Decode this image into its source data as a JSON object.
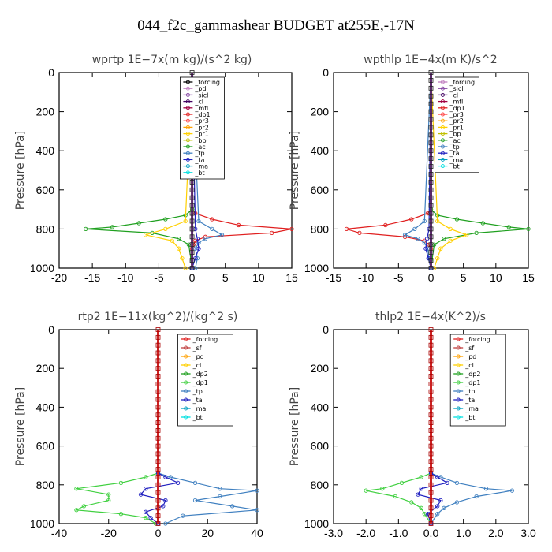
{
  "figure_title": "044_f2c_gammashear  BUDGET at255E,-17N",
  "chart_data": [
    {
      "type": "line",
      "title": "wprtp   1E−7x(m kg)/(s^2 kg)",
      "ylabel": "Pressure [hPa]",
      "xlim": [
        -20,
        15
      ],
      "ylim": [
        1000,
        0
      ],
      "xticks": [
        "-20",
        "-15",
        "-10",
        "-5",
        "0",
        "5",
        "10",
        "15"
      ],
      "xtick_values": [
        -20,
        -15,
        -10,
        -5,
        0,
        5,
        10,
        15
      ],
      "yticks": [
        "0",
        "200",
        "400",
        "600",
        "800",
        "1000"
      ],
      "ytick_values": [
        0,
        200,
        400,
        600,
        800,
        1000
      ],
      "legend": [
        "_forcing",
        "_pd",
        "_sicl",
        "_cl",
        "_mfl",
        "_dp1",
        "_pr3",
        "_pr2",
        "_pr1",
        "_bp",
        "_ac",
        "_tp",
        "_ta",
        "_ma",
        "_bt"
      ],
      "legend_colors": [
        "#000000",
        "#c080c0",
        "#8040a0",
        "#400060",
        "#a00040",
        "#e02020",
        "#ff4040",
        "#ffa000",
        "#ffd000",
        "#c0c000",
        "#20a020",
        "#4080c0",
        "#2020c0",
        "#00a0c0",
        "#00e0e0"
      ],
      "series": [
        {
          "name": "_dp1",
          "color": "#e02020",
          "y": [
            0,
            700,
            720,
            750,
            780,
            800,
            820,
            840,
            860,
            880,
            900,
            1000
          ],
          "x": [
            0,
            0,
            0.5,
            3,
            7,
            15,
            12,
            2,
            0.5,
            0.2,
            0,
            0
          ]
        },
        {
          "name": "_ac",
          "color": "#20a020",
          "y": [
            0,
            700,
            730,
            750,
            770,
            790,
            800,
            820,
            850,
            880,
            1000
          ],
          "x": [
            0,
            0,
            -1,
            -4,
            -8,
            -12,
            -16,
            -6,
            -2,
            -0.5,
            0
          ]
        },
        {
          "name": "_pr1",
          "color": "#ffd000",
          "y": [
            0,
            760,
            800,
            830,
            860,
            900,
            950,
            1000
          ],
          "x": [
            0,
            -1,
            -4,
            -7,
            -3,
            -2,
            -1.5,
            -1
          ]
        },
        {
          "name": "_tp",
          "color": "#4080c0",
          "y": [
            0,
            760,
            800,
            830,
            850,
            870,
            900,
            950,
            1000
          ],
          "x": [
            0,
            1,
            3,
            4.5,
            2,
            1,
            0.5,
            0.8,
            0.5
          ]
        },
        {
          "name": "_ta",
          "color": "#2020c0",
          "y": [
            0,
            800,
            850,
            900,
            950,
            1000
          ],
          "x": [
            0,
            0.5,
            0.8,
            1,
            0.5,
            0
          ]
        }
      ]
    },
    {
      "type": "line",
      "title": "wpthlp   1E−4x(m K)/s^2",
      "ylabel": "Pressure [hPa]",
      "xlim": [
        -15,
        15
      ],
      "ylim": [
        1000,
        0
      ],
      "xticks": [
        "-15",
        "-10",
        "-5",
        "0",
        "5",
        "10",
        "15"
      ],
      "xtick_values": [
        -15,
        -10,
        -5,
        0,
        5,
        10,
        15
      ],
      "yticks": [
        "0",
        "200",
        "400",
        "600",
        "800",
        "1000"
      ],
      "ytick_values": [
        0,
        200,
        400,
        600,
        800,
        1000
      ],
      "legend": [
        "_forcing",
        "_sicl",
        "_cl",
        "_mfl",
        "_dp1",
        "_pr3",
        "_pr2",
        "_pr1",
        "_bp",
        "_ac",
        "_tp",
        "_ta",
        "_ma",
        "_bt"
      ],
      "legend_colors": [
        "#c080c0",
        "#8040a0",
        "#400060",
        "#a00040",
        "#e02020",
        "#ff4040",
        "#ffa000",
        "#ffd000",
        "#c0c000",
        "#20a020",
        "#4080c0",
        "#2020c0",
        "#00a0c0",
        "#00e0e0"
      ],
      "series": [
        {
          "name": "_dp1",
          "color": "#e02020",
          "y": [
            0,
            700,
            720,
            750,
            780,
            800,
            820,
            840,
            860,
            880,
            900,
            1000
          ],
          "x": [
            0,
            0,
            -0.5,
            -3,
            -7,
            -13,
            -11,
            -4,
            -1,
            -0.3,
            0,
            0
          ]
        },
        {
          "name": "_ac",
          "color": "#20a020",
          "y": [
            0,
            700,
            730,
            750,
            770,
            790,
            800,
            820,
            850,
            880,
            1000
          ],
          "x": [
            0,
            0,
            1,
            4,
            8,
            12,
            15,
            7,
            2,
            0.5,
            0
          ]
        },
        {
          "name": "_pr1",
          "color": "#ffd000",
          "y": [
            0,
            760,
            800,
            830,
            860,
            900,
            950,
            1000
          ],
          "x": [
            0,
            1,
            3,
            5.5,
            3,
            1.5,
            1,
            0.5
          ]
        },
        {
          "name": "_tp",
          "color": "#4080c0",
          "y": [
            0,
            760,
            800,
            830,
            850,
            870,
            900,
            950,
            1000
          ],
          "x": [
            0,
            -1,
            -2.5,
            -4,
            -2,
            -1,
            -0.5,
            -0.3,
            0
          ]
        },
        {
          "name": "_ta",
          "color": "#2020c0",
          "y": [
            0,
            800,
            850,
            900,
            950,
            1000
          ],
          "x": [
            0,
            -0.3,
            -0.6,
            -0.8,
            -0.4,
            0
          ]
        }
      ]
    },
    {
      "type": "line",
      "title": "rtp2   1E−11x(kg^2)/(kg^2 s)",
      "ylabel": "Pressure [hPa]",
      "xlim": [
        -40,
        40
      ],
      "ylim": [
        1000,
        0
      ],
      "xticks": [
        "-40",
        "-20",
        "0",
        "20",
        "40"
      ],
      "xtick_values": [
        -40,
        -20,
        0,
        20,
        40
      ],
      "yticks": [
        "0",
        "200",
        "400",
        "600",
        "800",
        "1000"
      ],
      "ytick_values": [
        0,
        200,
        400,
        600,
        800,
        1000
      ],
      "legend": [
        "_forcing",
        "_sf",
        "_pd",
        "_cl",
        "_dp2",
        "_dp1",
        "_tp",
        "_ta",
        "_ma",
        "_bt"
      ],
      "legend_colors": [
        "#e02020",
        "#c04040",
        "#ffa000",
        "#ffd000",
        "#20a020",
        "#40d040",
        "#4080c0",
        "#2020c0",
        "#00a0c0",
        "#00e0e0"
      ],
      "series": [
        {
          "name": "_dp1",
          "color": "#40d040",
          "y": [
            0,
            740,
            760,
            790,
            820,
            850,
            880,
            910,
            930,
            950,
            970,
            1000
          ],
          "x": [
            0,
            0,
            -5,
            -15,
            -33,
            -20,
            -20,
            -30,
            -33,
            -15,
            -5,
            -1
          ]
        },
        {
          "name": "_tp",
          "color": "#4080c0",
          "y": [
            0,
            740,
            760,
            790,
            820,
            830,
            860,
            880,
            910,
            930,
            960,
            1000
          ],
          "x": [
            0,
            0,
            5,
            15,
            25,
            40,
            25,
            15,
            30,
            40,
            10,
            3
          ]
        },
        {
          "name": "_ta",
          "color": "#2020c0",
          "y": [
            0,
            740,
            760,
            790,
            820,
            850,
            880,
            910,
            940,
            970,
            1000
          ],
          "x": [
            0,
            0,
            3,
            8,
            -5,
            -7,
            3,
            2,
            -5,
            -3,
            0
          ]
        }
      ]
    },
    {
      "type": "line",
      "title": "thlp2   1E−4x(K^2)/s",
      "ylabel": "Pressure [hPa]",
      "xlim": [
        -3.0,
        3.0
      ],
      "ylim": [
        1000,
        0
      ],
      "xticks": [
        "-3.0",
        "-2.0",
        "-1.0",
        "0.0",
        "1.0",
        "2.0",
        "3.0"
      ],
      "xtick_values": [
        -3,
        -2,
        -1,
        0,
        1,
        2,
        3
      ],
      "yticks": [
        "0",
        "200",
        "400",
        "600",
        "800",
        "1000"
      ],
      "ytick_values": [
        0,
        200,
        400,
        600,
        800,
        1000
      ],
      "legend": [
        "_forcing",
        "_sf",
        "_pd",
        "_cl",
        "_dp2",
        "_dp1",
        "_tp",
        "_ta",
        "_ma",
        "_bt"
      ],
      "legend_colors": [
        "#e02020",
        "#c04040",
        "#ffa000",
        "#ffd000",
        "#20a020",
        "#40d040",
        "#4080c0",
        "#2020c0",
        "#00a0c0",
        "#00e0e0"
      ],
      "series": [
        {
          "name": "_dp1",
          "color": "#40d040",
          "y": [
            0,
            740,
            760,
            790,
            820,
            830,
            860,
            890,
            920,
            950,
            1000
          ],
          "x": [
            0,
            0,
            -0.3,
            -0.9,
            -1.5,
            -2.0,
            -1.1,
            -0.6,
            -0.3,
            -0.2,
            0
          ]
        },
        {
          "name": "_tp",
          "color": "#4080c0",
          "y": [
            0,
            740,
            760,
            790,
            820,
            830,
            860,
            890,
            920,
            950,
            1000
          ],
          "x": [
            0,
            0,
            0.3,
            0.8,
            1.7,
            2.5,
            1.4,
            0.8,
            0.4,
            0.2,
            0
          ]
        },
        {
          "name": "_ta",
          "color": "#2020c0",
          "y": [
            0,
            740,
            760,
            790,
            820,
            850,
            880,
            910,
            950,
            1000
          ],
          "x": [
            0,
            0,
            0.2,
            0.5,
            -0.3,
            -0.4,
            0.3,
            0.2,
            -0.1,
            0
          ]
        }
      ]
    }
  ]
}
